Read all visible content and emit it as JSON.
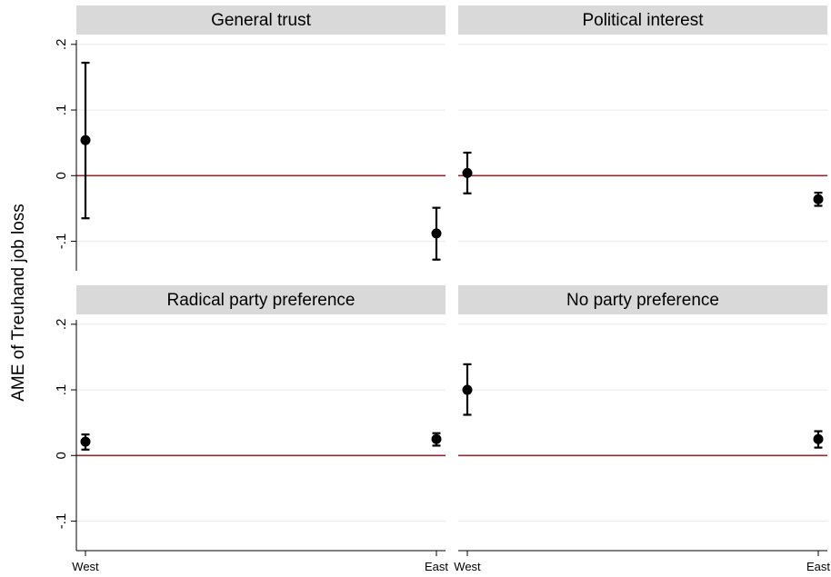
{
  "chart_data": {
    "type": "scatter",
    "subtype": "point-estimate-with-confidence-intervals",
    "ylabel": "AME of Treuhand job loss",
    "xlabel": "",
    "categories": [
      "West",
      "East"
    ],
    "y_ticks": [
      ".2",
      ".1",
      "0",
      "-.1"
    ],
    "y_tick_values": [
      0.2,
      0.1,
      0,
      -0.1
    ],
    "ylim": [
      -0.145,
      0.215
    ],
    "reference_line": 0,
    "grid": true,
    "colors": {
      "reference_line": "#8b2c35",
      "grid": "#e8ecef",
      "panel_header": "#d9d9d9",
      "points": "#000000"
    },
    "panels": [
      {
        "title": "General trust",
        "points": [
          {
            "x": "West",
            "y": 0.054,
            "lo": -0.065,
            "hi": 0.172
          },
          {
            "x": "East",
            "y": -0.088,
            "lo": -0.128,
            "hi": -0.049
          }
        ]
      },
      {
        "title": "Political interest",
        "points": [
          {
            "x": "West",
            "y": 0.004,
            "lo": -0.027,
            "hi": 0.035
          },
          {
            "x": "East",
            "y": -0.036,
            "lo": -0.046,
            "hi": -0.026
          }
        ]
      },
      {
        "title": "Radical party preference",
        "points": [
          {
            "x": "West",
            "y": 0.021,
            "lo": 0.009,
            "hi": 0.032
          },
          {
            "x": "East",
            "y": 0.025,
            "lo": 0.015,
            "hi": 0.034
          }
        ]
      },
      {
        "title": "No party preference",
        "points": [
          {
            "x": "West",
            "y": 0.1,
            "lo": 0.062,
            "hi": 0.139
          },
          {
            "x": "East",
            "y": 0.025,
            "lo": 0.012,
            "hi": 0.037
          }
        ]
      }
    ]
  }
}
